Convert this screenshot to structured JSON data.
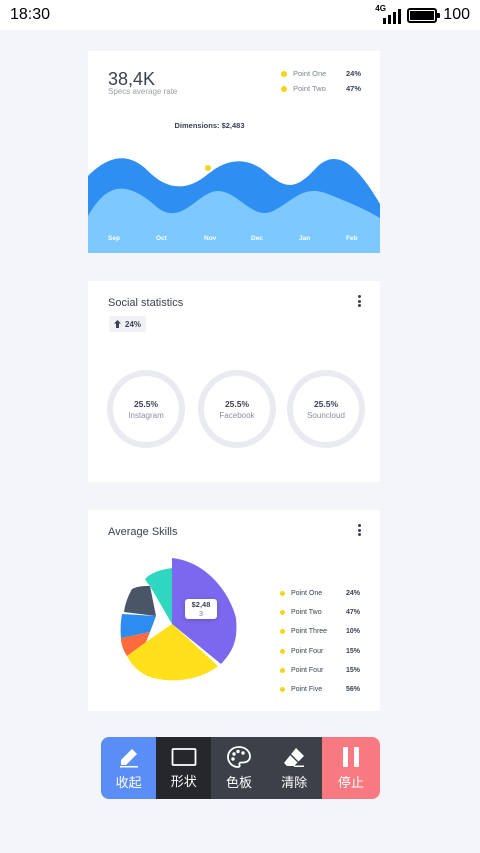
{
  "status_bar": {
    "time": "18:30",
    "network": "4G",
    "battery": "100"
  },
  "spec_card": {
    "value": "38,4K",
    "label": "Specs average rate",
    "legend": [
      {
        "name": "Point One",
        "pct": "24%"
      },
      {
        "name": "Point Two",
        "pct": "47%"
      }
    ],
    "tooltip": "Dimensions: $2,483",
    "months": [
      "Sep",
      "Oct",
      "Nov",
      "Dec",
      "Jan",
      "Feb"
    ],
    "colors": {
      "front": "#7cc8ff",
      "back": "#2f8ef2",
      "marker": "#f5d517"
    }
  },
  "social_card": {
    "title": "Social statistics",
    "badge": "24%",
    "rings": [
      {
        "pct": "25.5%",
        "label": "Instagram"
      },
      {
        "pct": "25.5%",
        "label": "Facebook"
      },
      {
        "pct": "25.5%",
        "label": "Souncloud"
      }
    ]
  },
  "skills_card": {
    "title": "Average Skills",
    "tooltip_line1": "$2,48",
    "tooltip_line2": "3",
    "legend": [
      {
        "name": "Point One",
        "pct": "24%"
      },
      {
        "name": "Point Two",
        "pct": "47%"
      },
      {
        "name": "Point Three",
        "pct": "10%"
      },
      {
        "name": "Point Four",
        "pct": "15%"
      },
      {
        "name": "Point Four",
        "pct": "15%"
      },
      {
        "name": "Point Five",
        "pct": "56%"
      }
    ],
    "slice_colors": [
      "#7b68ee",
      "#ffe01a",
      "#ff6b3d",
      "#2d8cf0",
      "#4a5568",
      "#2fd6c0"
    ]
  },
  "toolbar": {
    "items": [
      {
        "label": "收起",
        "icon": "pencil-icon",
        "color": "#5b8df6"
      },
      {
        "label": "形状",
        "icon": "rectangle-icon",
        "color": "#25272c"
      },
      {
        "label": "色板",
        "icon": "palette-icon",
        "color": "#3c4048"
      },
      {
        "label": "清除",
        "icon": "eraser-icon",
        "color": "#3c4048"
      },
      {
        "label": "停止",
        "icon": "pause-icon",
        "color": "#f87a80"
      }
    ]
  }
}
